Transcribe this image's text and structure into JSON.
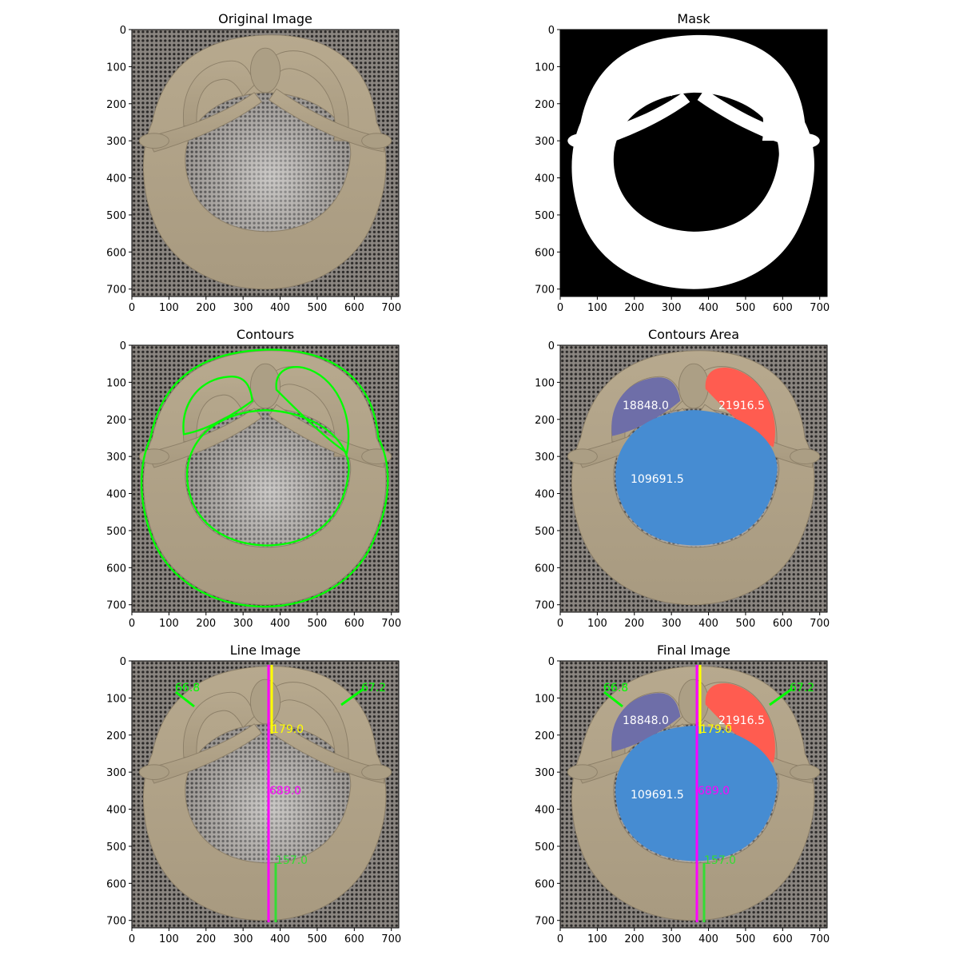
{
  "figure": {
    "panels": [
      {
        "id": "original",
        "title": "Original Image",
        "view": "photo"
      },
      {
        "id": "mask",
        "title": "Mask",
        "view": "mask"
      },
      {
        "id": "contours",
        "title": "Contours",
        "view": "contours"
      },
      {
        "id": "area",
        "title": "Contours Area",
        "view": "area"
      },
      {
        "id": "lines",
        "title": "Line Image",
        "view": "lines"
      },
      {
        "id": "final",
        "title": "Final Image",
        "view": "final"
      }
    ],
    "axes": {
      "x_ticks": [
        "0",
        "100",
        "200",
        "300",
        "400",
        "500",
        "600",
        "700"
      ],
      "y_ticks": [
        "0",
        "100",
        "200",
        "300",
        "400",
        "500",
        "600",
        "700"
      ],
      "x_range": [
        0,
        720
      ],
      "y_range": [
        0,
        720
      ]
    },
    "area_labels": [
      {
        "text": "18848.0",
        "color": "#6e6ea8",
        "region": "upper-left hole"
      },
      {
        "text": "21916.5",
        "color": "#ff5c50",
        "region": "upper-right hole"
      },
      {
        "text": "109691.5",
        "color": "#468cd2",
        "region": "lower hole"
      }
    ],
    "measurements": {
      "left_angle": "66.8",
      "right_angle": "67.2",
      "top_thickness": "179.0",
      "total_height": "689.0",
      "bottom_thickness": "157.0"
    },
    "colors": {
      "contour": "#00ff00",
      "vertical_total": "#ff00ff",
      "vertical_top": "#ffff00",
      "vertical_bottom": "#33dd33",
      "angle_lines": "#00ff00"
    }
  }
}
